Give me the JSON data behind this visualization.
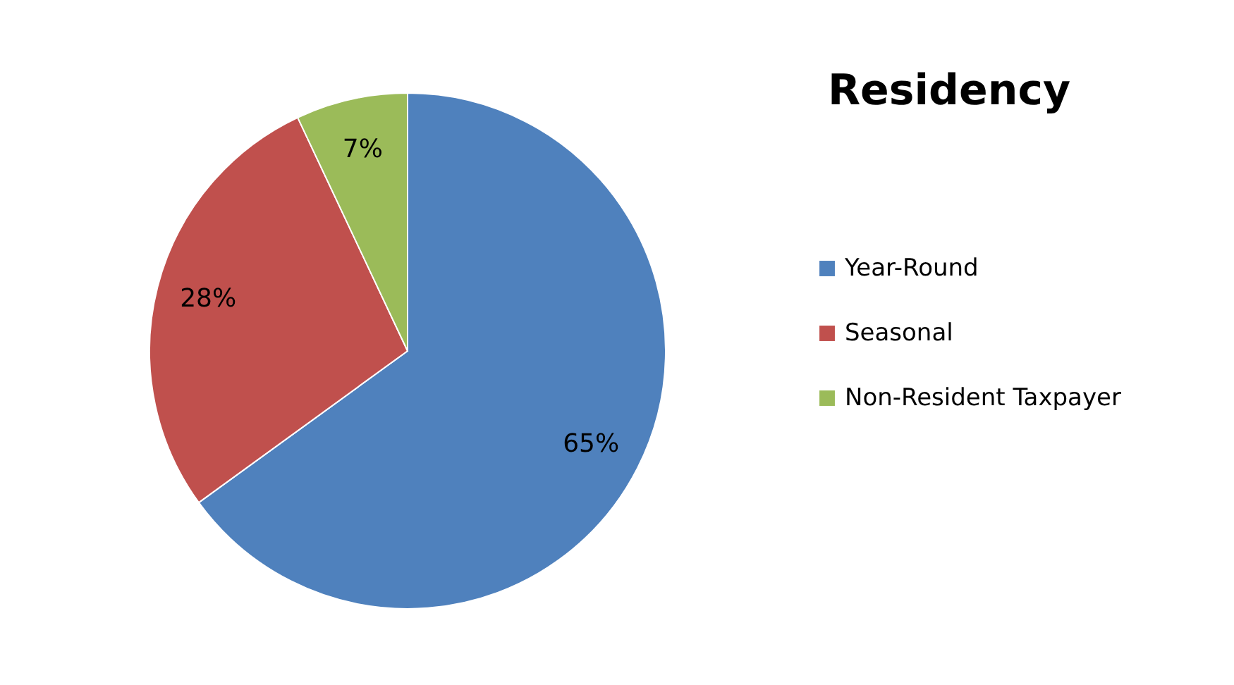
{
  "chart_data": {
    "type": "pie",
    "title": "Residency",
    "categories": [
      "Year-Round",
      "Seasonal",
      "Non-Resident Taxpayer"
    ],
    "values": [
      65,
      28,
      7
    ],
    "colors": [
      "#4f81bd",
      "#c0504d",
      "#9bbb59"
    ],
    "value_labels": [
      "65%",
      "28%",
      "7%"
    ],
    "legend": "right"
  }
}
